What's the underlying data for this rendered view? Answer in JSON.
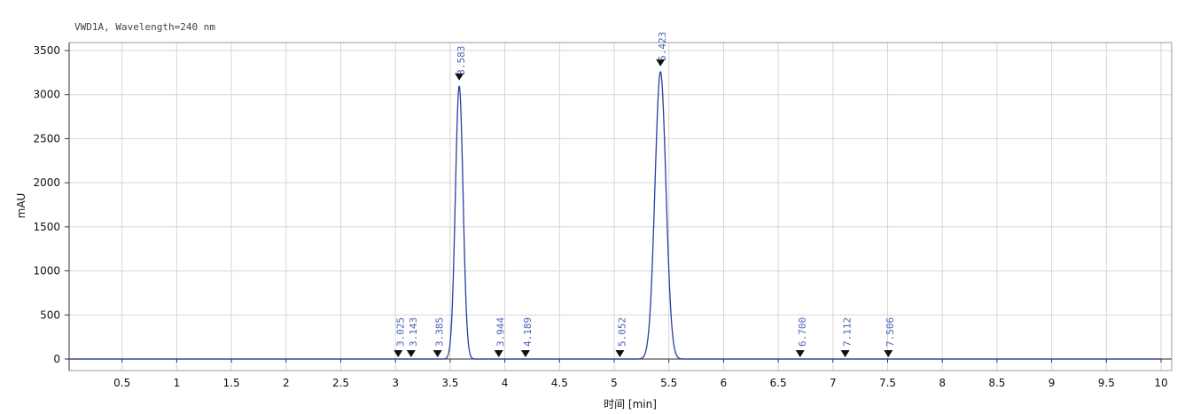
{
  "chart_data": {
    "type": "line",
    "title": "VWD1A, Wavelength=240 nm",
    "xlabel": "时间 [min]",
    "ylabel": "mAU",
    "xlim": [
      0,
      10
    ],
    "ylim": [
      -50,
      3600
    ],
    "xticks": [
      0.5,
      1,
      1.5,
      2,
      2.5,
      3,
      3.5,
      4,
      4.5,
      5,
      5.5,
      6,
      6.5,
      7,
      7.5,
      8,
      8.5,
      9,
      9.5,
      10
    ],
    "yticks": [
      0,
      500,
      1000,
      1500,
      2000,
      2500,
      3000,
      3500
    ],
    "grid": true,
    "peaks": [
      {
        "rt": 3.025,
        "label": "3.025",
        "height": 0
      },
      {
        "rt": 3.143,
        "label": "3.143",
        "height": 0
      },
      {
        "rt": 3.385,
        "label": "3.385",
        "height": 0
      },
      {
        "rt": 3.583,
        "label": "3.583",
        "height": 3100,
        "width": 0.035
      },
      {
        "rt": 3.944,
        "label": "3.944",
        "height": 0
      },
      {
        "rt": 4.189,
        "label": "4.189",
        "height": 0
      },
      {
        "rt": 5.052,
        "label": "5.052",
        "height": 0
      },
      {
        "rt": 5.423,
        "label": "5.423",
        "height": 3260,
        "width": 0.05
      },
      {
        "rt": 6.7,
        "label": "6.700",
        "height": 0
      },
      {
        "rt": 7.112,
        "label": "7.112",
        "height": 0
      },
      {
        "rt": 7.506,
        "label": "7.506",
        "height": 0
      }
    ]
  }
}
